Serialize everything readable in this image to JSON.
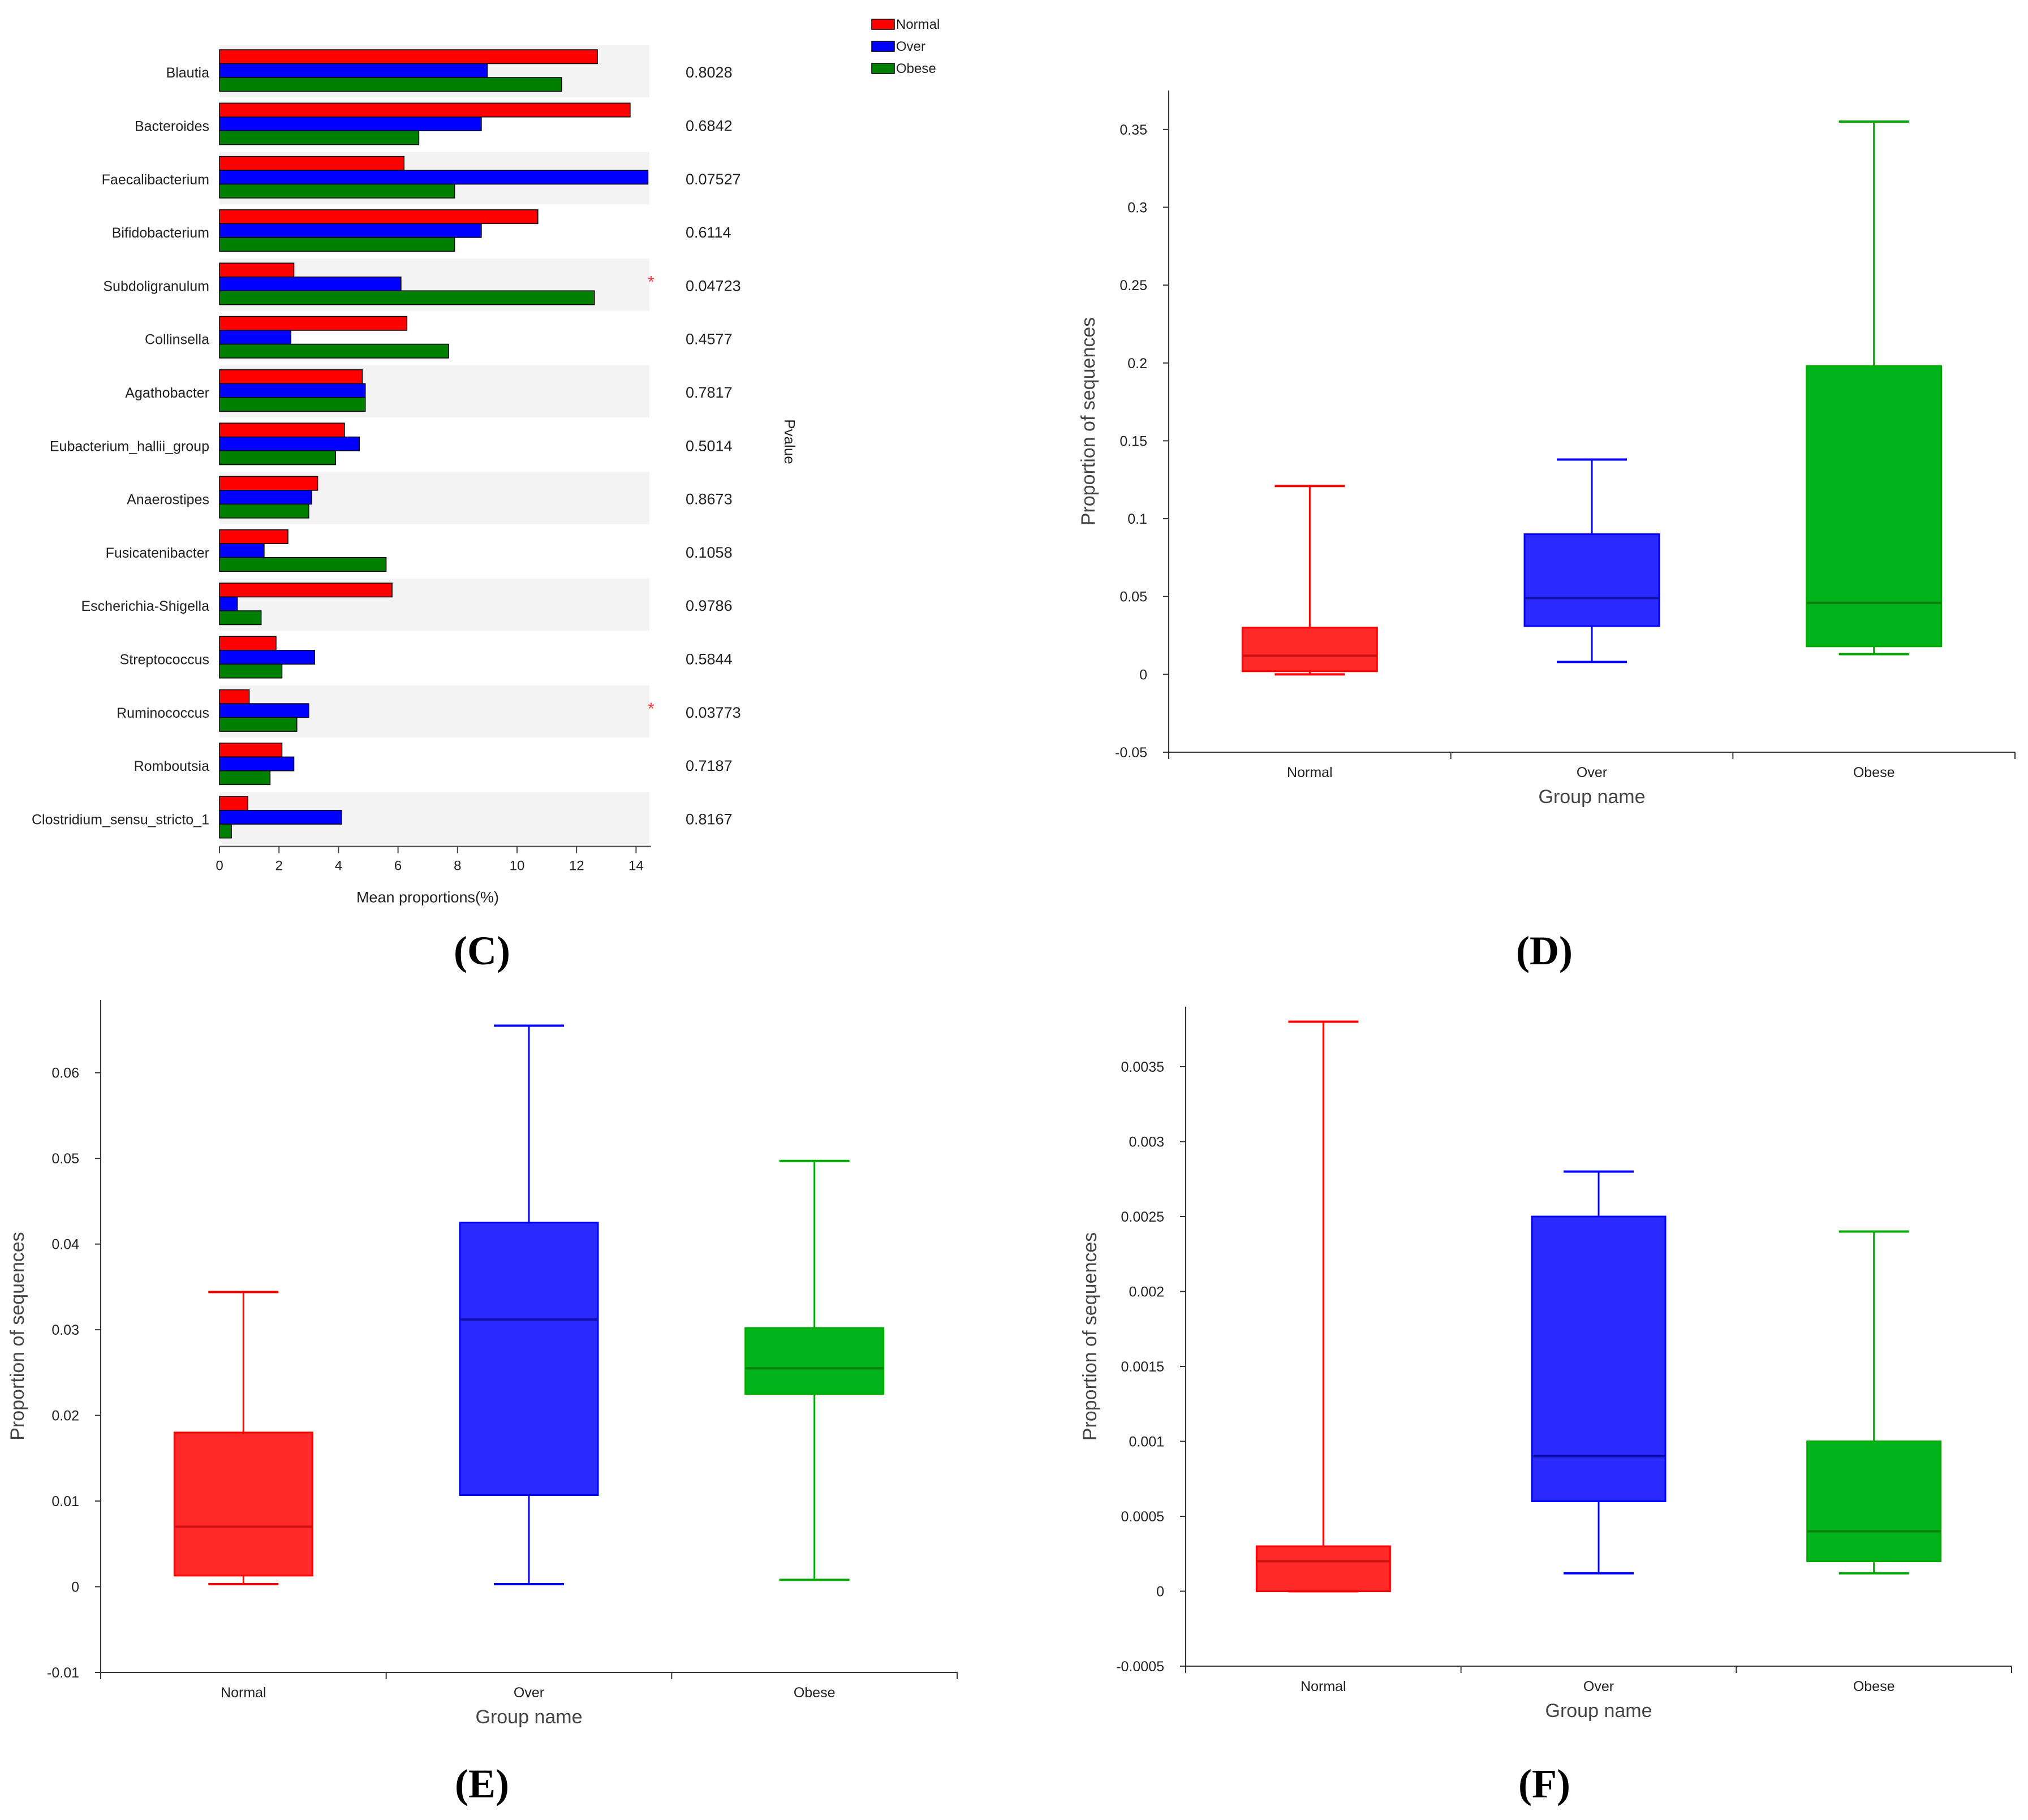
{
  "panel_labels": [
    "(C)",
    "(D)",
    "(E)",
    "(F)"
  ],
  "chart_data": [
    {
      "panel": "(C)",
      "type": "bar",
      "orientation": "horizontal",
      "categories": [
        "Blautia",
        "Bacteroides",
        "Faecalibacterium",
        "Bifidobacterium",
        "Subdoligranulum",
        "Collinsella",
        "Agathobacter",
        "Eubacterium_hallii_group",
        "Anaerostipes",
        "Fusicatenibacter",
        "Escherichia-Shigella",
        "Streptococcus",
        "Ruminococcus",
        "Romboutsia",
        "Clostridium_sensu_stricto_1"
      ],
      "series": [
        {
          "name": "Normal",
          "color": "#ff0000",
          "values": [
            12.7,
            13.8,
            6.2,
            10.7,
            2.5,
            6.3,
            4.8,
            4.2,
            3.3,
            2.3,
            5.8,
            1.9,
            1.0,
            2.1,
            0.95
          ]
        },
        {
          "name": "Over",
          "color": "#0000ff",
          "values": [
            9.0,
            8.8,
            14.4,
            8.8,
            6.1,
            2.4,
            4.9,
            4.7,
            3.1,
            1.5,
            0.6,
            3.2,
            3.0,
            2.5,
            4.1
          ]
        },
        {
          "name": "Obese",
          "color": "#008000",
          "values": [
            11.5,
            6.7,
            7.9,
            7.9,
            12.6,
            7.7,
            4.9,
            3.9,
            3.0,
            5.6,
            1.4,
            2.1,
            2.6,
            1.7,
            0.4
          ]
        }
      ],
      "pvalues": [
        "0.8028",
        "0.6842",
        "0.07527",
        "0.6114",
        "0.04723",
        "0.4577",
        "0.7817",
        "0.5014",
        "0.8673",
        "0.1058",
        "0.9786",
        "0.5844",
        "0.03773",
        "0.7187",
        "0.8167"
      ],
      "significant": [
        false,
        false,
        false,
        false,
        true,
        false,
        false,
        false,
        false,
        false,
        false,
        false,
        true,
        false,
        false
      ],
      "star": "*",
      "xlabel": "Mean proportions(%)",
      "pvalue_label": "Pvalue",
      "xlim": [
        0,
        14.5
      ],
      "xticks": [
        0,
        2,
        4,
        6,
        8,
        10,
        12,
        14
      ],
      "legend_position": "top-right"
    },
    {
      "panel": "(D)",
      "type": "box",
      "categories": [
        "Normal",
        "Over",
        "Obese"
      ],
      "colors": [
        "#ff2a2a",
        "#2a2aff",
        "#00b31b"
      ],
      "edge_colors": [
        "#ff0000",
        "#0000ff",
        "#00aa00"
      ],
      "boxes": [
        {
          "min": 0.0,
          "q1": 0.002,
          "median": 0.012,
          "q3": 0.03,
          "max": 0.121
        },
        {
          "min": 0.008,
          "q1": 0.031,
          "median": 0.049,
          "q3": 0.09,
          "max": 0.138
        },
        {
          "min": 0.013,
          "q1": 0.018,
          "median": 0.046,
          "q3": 0.198,
          "max": 0.355
        }
      ],
      "xlabel": "Group name",
      "ylabel": "Proportion of sequences",
      "ylim": [
        -0.05,
        0.375
      ],
      "yticks": [
        -0.05,
        0,
        0.05,
        0.1,
        0.15,
        0.2,
        0.25,
        0.3,
        0.35
      ],
      "ytick_labels": [
        "-0.05",
        "0",
        "0.05",
        "0.1",
        "0.15",
        "0.2",
        "0.25",
        "0.3",
        "0.35"
      ]
    },
    {
      "panel": "(E)",
      "type": "box",
      "categories": [
        "Normal",
        "Over",
        "Obese"
      ],
      "colors": [
        "#ff2a2a",
        "#2a2aff",
        "#00b31b"
      ],
      "edge_colors": [
        "#ff0000",
        "#0000ff",
        "#00aa00"
      ],
      "boxes": [
        {
          "min": 0.0003,
          "q1": 0.0013,
          "median": 0.007,
          "q3": 0.018,
          "max": 0.0344
        },
        {
          "min": 0.0003,
          "q1": 0.0107,
          "median": 0.0312,
          "q3": 0.0425,
          "max": 0.0655
        },
        {
          "min": 0.0008,
          "q1": 0.0225,
          "median": 0.0255,
          "q3": 0.0302,
          "max": 0.0497
        }
      ],
      "xlabel": "Group name",
      "ylabel": "Proportion of sequences",
      "ylim": [
        -0.01,
        0.0685
      ],
      "yticks": [
        -0.01,
        0,
        0.01,
        0.02,
        0.03,
        0.04,
        0.05,
        0.06
      ],
      "ytick_labels": [
        "-0.01",
        "0",
        "0.01",
        "0.02",
        "0.03",
        "0.04",
        "0.05",
        "0.06"
      ]
    },
    {
      "panel": "(F)",
      "type": "box",
      "categories": [
        "Normal",
        "Over",
        "Obese"
      ],
      "colors": [
        "#ff2a2a",
        "#2a2aff",
        "#00b31b"
      ],
      "edge_colors": [
        "#ff0000",
        "#0000ff",
        "#00aa00"
      ],
      "boxes": [
        {
          "min": 0.0,
          "q1": 0.0,
          "median": 0.0002,
          "q3": 0.0003,
          "max": 0.0038
        },
        {
          "min": 0.00012,
          "q1": 0.0006,
          "median": 0.0009,
          "q3": 0.0025,
          "max": 0.0028
        },
        {
          "min": 0.00012,
          "q1": 0.0002,
          "median": 0.0004,
          "q3": 0.001,
          "max": 0.0024
        }
      ],
      "xlabel": "Group name",
      "ylabel": "Proportion of sequences",
      "ylim": [
        -0.0005,
        0.0039
      ],
      "yticks": [
        -0.0005,
        0,
        0.0005,
        0.001,
        0.0015,
        0.002,
        0.0025,
        0.003,
        0.0035
      ],
      "ytick_labels": [
        "-0.0005",
        "0",
        "0.0005",
        "0.001",
        "0.0015",
        "0.002",
        "0.0025",
        "0.003",
        "0.0035"
      ]
    }
  ]
}
